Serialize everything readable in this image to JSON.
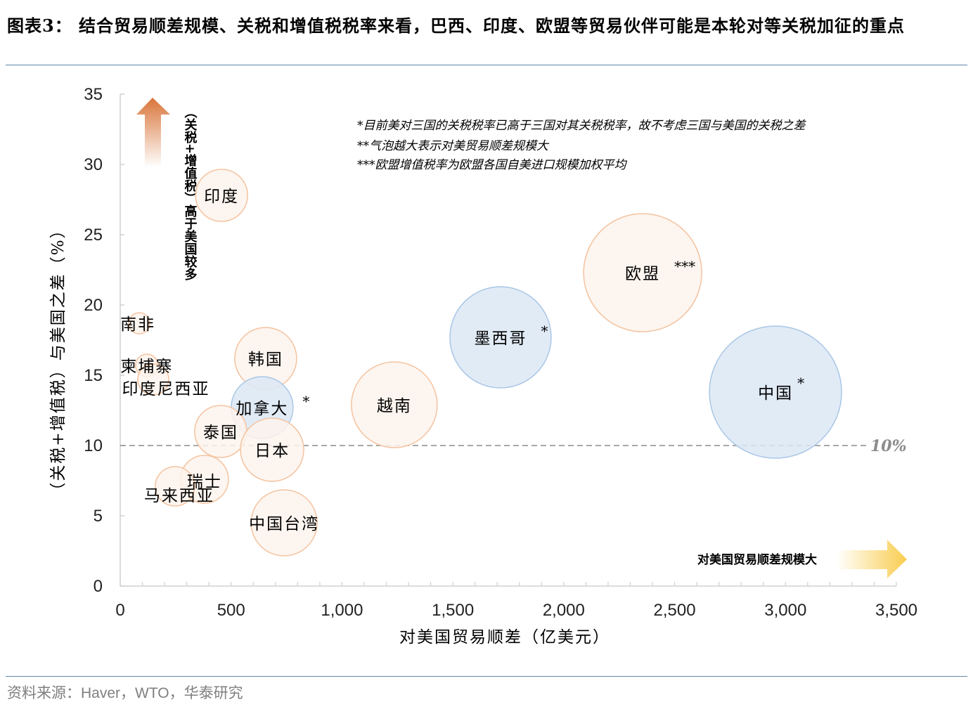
{
  "header": {
    "title": "图表3：  结合贸易顺差规模、关税和增值税税率来看，巴西、印度、欧盟等贸易伙伴可能是本轮对等关税加征的重点"
  },
  "footer": {
    "source": "资料来源：Haver，WTO，华泰研究"
  },
  "colors": {
    "orange_fill": "#fdf3ec",
    "orange_stroke": "#f4c3a0",
    "blue_fill": "#dce8f5",
    "blue_stroke": "#a9c6e6",
    "reference_line": "#8c8c8c",
    "rule": "#5f86a8",
    "up_arrow": "#d9743a",
    "right_arrow": "#f9cd4f"
  },
  "annotations": {
    "notes": [
      "*目前美对三国的关税税率已高于三国对其关税税率，故不考虑三国与美国的关税之差",
      "**气泡越大表示对美贸易顺差规模大",
      "***欧盟增值税率为欧盟各国自美进口规模加权平均"
    ],
    "up_arrow_label": "（关税+增值税）高于美国较多",
    "right_arrow_label": "对美国贸易顺差规模大",
    "reference_label": "10%"
  },
  "chart_data": {
    "type": "scatter",
    "subtype": "bubble",
    "title": "结合贸易顺差规模、关税和增值税税率来看，巴西、印度、欧盟等贸易伙伴可能是本轮对等关税加征的重点",
    "xlabel": "对美国贸易顺差（亿美元）",
    "ylabel": "（关税+增值税）与美国之差（%）",
    "xlim": [
      0,
      3500
    ],
    "ylim": [
      0,
      35
    ],
    "x_ticks": [
      "0",
      "500",
      "1,000",
      "1,500",
      "2,000",
      "2,500",
      "3,000",
      "3,500"
    ],
    "y_ticks": [
      "0",
      "5",
      "10",
      "15",
      "20",
      "25",
      "30",
      "35"
    ],
    "grid": false,
    "reference_line": {
      "axis": "y",
      "value": 10,
      "style": "dashed",
      "label": "10%"
    },
    "legend": null,
    "points": [
      {
        "label": "印度",
        "x": 457,
        "y": 27.8,
        "size": 37,
        "group": "orange",
        "marker": ""
      },
      {
        "label": "南非",
        "x": 86,
        "y": 18.7,
        "size": 15,
        "group": "orange",
        "marker": ""
      },
      {
        "label": "柬埔寨",
        "x": 120,
        "y": 15.7,
        "size": 16,
        "group": "orange",
        "marker": ""
      },
      {
        "label": "印度尼西亚",
        "x": 149,
        "y": 14.7,
        "size": 22,
        "group": "orange",
        "marker": ""
      },
      {
        "label": "韩国",
        "x": 656,
        "y": 16.2,
        "size": 44,
        "group": "orange",
        "marker": ""
      },
      {
        "label": "加拿大",
        "x": 640,
        "y": 12.7,
        "size": 44,
        "group": "blue",
        "marker": "*"
      },
      {
        "label": "泰国",
        "x": 453,
        "y": 11.0,
        "size": 37,
        "group": "orange",
        "marker": ""
      },
      {
        "label": "日本",
        "x": 685,
        "y": 9.7,
        "size": 45,
        "group": "orange",
        "marker": ""
      },
      {
        "label": "瑞士",
        "x": 380,
        "y": 7.6,
        "size": 34,
        "group": "orange",
        "marker": ""
      },
      {
        "label": "马来西亚",
        "x": 247,
        "y": 7.1,
        "size": 28,
        "group": "orange",
        "marker": ""
      },
      {
        "label": "中国台湾",
        "x": 739,
        "y": 4.5,
        "size": 47,
        "group": "orange",
        "marker": ""
      },
      {
        "label": "越南",
        "x": 1236,
        "y": 12.9,
        "size": 61,
        "group": "orange",
        "marker": ""
      },
      {
        "label": "墨西哥",
        "x": 1715,
        "y": 17.7,
        "size": 72,
        "group": "blue",
        "marker": "*"
      },
      {
        "label": "欧盟",
        "x": 2356,
        "y": 22.3,
        "size": 84,
        "group": "orange",
        "marker": "***"
      },
      {
        "label": "中国",
        "x": 2955,
        "y": 13.8,
        "size": 94,
        "group": "blue",
        "marker": "*"
      }
    ]
  }
}
